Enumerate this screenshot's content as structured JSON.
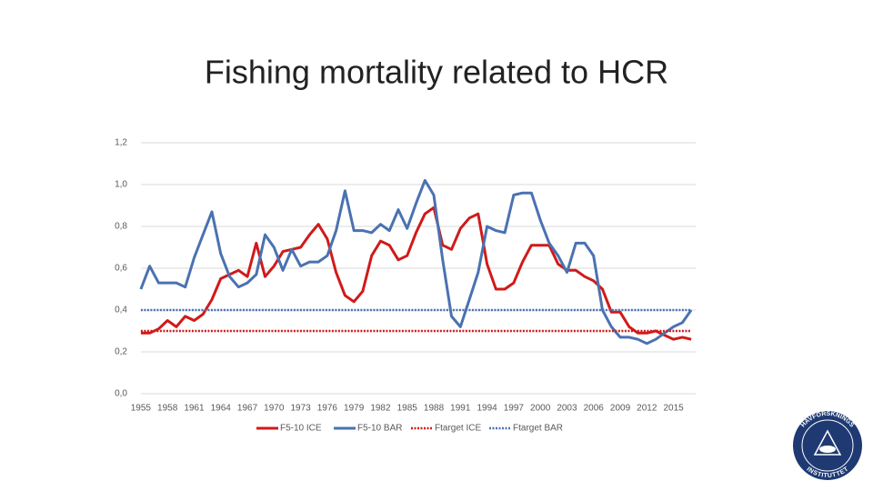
{
  "chart_data": {
    "type": "line",
    "title": "Fishing mortality related to HCR",
    "x": [
      1955,
      1956,
      1957,
      1958,
      1959,
      1960,
      1961,
      1962,
      1963,
      1964,
      1965,
      1966,
      1967,
      1968,
      1969,
      1970,
      1971,
      1972,
      1973,
      1974,
      1975,
      1976,
      1977,
      1978,
      1979,
      1980,
      1981,
      1982,
      1983,
      1984,
      1985,
      1986,
      1987,
      1988,
      1989,
      1990,
      1991,
      1992,
      1993,
      1994,
      1995,
      1996,
      1997,
      1998,
      1999,
      2000,
      2001,
      2002,
      2003,
      2004,
      2005,
      2006,
      2007,
      2008,
      2009,
      2010,
      2011,
      2012,
      2013,
      2014,
      2015,
      2016,
      2017
    ],
    "xlim": [
      1954.5,
      2017.5
    ],
    "xticks": [
      1955,
      1958,
      1961,
      1964,
      1967,
      1970,
      1973,
      1976,
      1979,
      1982,
      1985,
      1988,
      1991,
      1994,
      1997,
      2000,
      2003,
      2006,
      2009,
      2012,
      2015
    ],
    "ylim": [
      0,
      1.2
    ],
    "yticks": [
      {
        "value": 0,
        "label": "0,0"
      },
      {
        "value": 0.2,
        "label": "0,2"
      },
      {
        "value": 0.4,
        "label": "0,4"
      },
      {
        "value": 0.6,
        "label": "0,6"
      },
      {
        "value": 0.8,
        "label": "0,8"
      },
      {
        "value": 1.0,
        "label": "1,0"
      },
      {
        "value": 1.2,
        "label": "1,2"
      }
    ],
    "grid": true,
    "legend": "bottom",
    "series": [
      {
        "name": "F5-10 ICE",
        "color": "#d01a1a",
        "dash": "solid",
        "values": [
          0.29,
          0.29,
          0.31,
          0.35,
          0.32,
          0.37,
          0.35,
          0.38,
          0.45,
          0.55,
          0.57,
          0.59,
          0.56,
          0.72,
          0.56,
          0.61,
          0.68,
          0.69,
          0.7,
          0.76,
          0.81,
          0.74,
          0.58,
          0.47,
          0.44,
          0.49,
          0.66,
          0.73,
          0.71,
          0.64,
          0.66,
          0.77,
          0.86,
          0.89,
          0.71,
          0.69,
          0.79,
          0.84,
          0.86,
          0.62,
          0.5,
          0.5,
          0.53,
          0.63,
          0.71,
          0.71,
          0.71,
          0.62,
          0.59,
          0.59,
          0.56,
          0.54,
          0.5,
          0.39,
          0.39,
          0.32,
          0.29,
          0.29,
          0.3,
          0.28,
          0.26,
          0.27,
          0.26
        ]
      },
      {
        "name": "F5-10 BAR",
        "color": "#4a72b0",
        "dash": "solid",
        "values": [
          0.5,
          0.61,
          0.53,
          0.53,
          0.53,
          0.51,
          0.65,
          0.76,
          0.87,
          0.67,
          0.56,
          0.51,
          0.53,
          0.57,
          0.76,
          0.7,
          0.59,
          0.69,
          0.61,
          0.63,
          0.63,
          0.66,
          0.78,
          0.97,
          0.78,
          0.78,
          0.77,
          0.81,
          0.78,
          0.88,
          0.79,
          0.91,
          1.02,
          0.95,
          0.64,
          0.37,
          0.32,
          0.45,
          0.58,
          0.8,
          0.78,
          0.77,
          0.95,
          0.96,
          0.96,
          0.83,
          0.72,
          0.66,
          0.58,
          0.72,
          0.72,
          0.66,
          0.4,
          0.32,
          0.27,
          0.27,
          0.26,
          0.24,
          0.26,
          0.29,
          0.32,
          0.34,
          0.4
        ]
      },
      {
        "name": "Ftarget ICE",
        "color": "#d01a1a",
        "dash": "dotted",
        "values": [
          0.3,
          0.3,
          0.3,
          0.3,
          0.3,
          0.3,
          0.3,
          0.3,
          0.3,
          0.3,
          0.3,
          0.3,
          0.3,
          0.3,
          0.3,
          0.3,
          0.3,
          0.3,
          0.3,
          0.3,
          0.3,
          0.3,
          0.3,
          0.3,
          0.3,
          0.3,
          0.3,
          0.3,
          0.3,
          0.3,
          0.3,
          0.3,
          0.3,
          0.3,
          0.3,
          0.3,
          0.3,
          0.3,
          0.3,
          0.3,
          0.3,
          0.3,
          0.3,
          0.3,
          0.3,
          0.3,
          0.3,
          0.3,
          0.3,
          0.3,
          0.3,
          0.3,
          0.3,
          0.3,
          0.3,
          0.3,
          0.3,
          0.3,
          0.3,
          0.3,
          0.3,
          0.3,
          0.3
        ]
      },
      {
        "name": "Ftarget BAR",
        "color": "#4a72b0",
        "dash": "dotted",
        "values": [
          0.4,
          0.4,
          0.4,
          0.4,
          0.4,
          0.4,
          0.4,
          0.4,
          0.4,
          0.4,
          0.4,
          0.4,
          0.4,
          0.4,
          0.4,
          0.4,
          0.4,
          0.4,
          0.4,
          0.4,
          0.4,
          0.4,
          0.4,
          0.4,
          0.4,
          0.4,
          0.4,
          0.4,
          0.4,
          0.4,
          0.4,
          0.4,
          0.4,
          0.4,
          0.4,
          0.4,
          0.4,
          0.4,
          0.4,
          0.4,
          0.4,
          0.4,
          0.4,
          0.4,
          0.4,
          0.4,
          0.4,
          0.4,
          0.4,
          0.4,
          0.4,
          0.4,
          0.4,
          0.4,
          0.4,
          0.4,
          0.4,
          0.4,
          0.4,
          0.4,
          0.4,
          0.4,
          0.4
        ]
      }
    ]
  },
  "logo": {
    "text_top": "HAVFORSKNINGS",
    "text_bottom": "INSTITUTTET"
  }
}
